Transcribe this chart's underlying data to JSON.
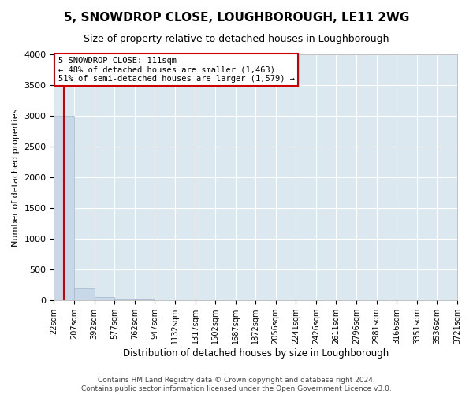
{
  "title": "5, SNOWDROP CLOSE, LOUGHBOROUGH, LE11 2WG",
  "subtitle": "Size of property relative to detached houses in Loughborough",
  "xlabel": "Distribution of detached houses by size in Loughborough",
  "ylabel": "Number of detached properties",
  "bin_edges": [
    22,
    207,
    392,
    577,
    762,
    947,
    1132,
    1317,
    1502,
    1687,
    1872,
    2056,
    2241,
    2426,
    2611,
    2796,
    2981,
    3166,
    3351,
    3536,
    3721
  ],
  "bar_heights": [
    3000,
    200,
    50,
    20,
    10,
    8,
    6,
    5,
    4,
    3,
    3,
    2,
    2,
    2,
    1,
    1,
    1,
    1,
    1,
    1
  ],
  "bar_color": "#c8d8e8",
  "bar_edge_color": "#a0b8cc",
  "vline_x": 111,
  "vline_color": "#cc0000",
  "annotation_text": "5 SNOWDROP CLOSE: 111sqm\n← 48% of detached houses are smaller (1,463)\n51% of semi-detached houses are larger (1,579) →",
  "annotation_box_color": "#cc0000",
  "ylim": [
    0,
    4000
  ],
  "yticks": [
    0,
    500,
    1000,
    1500,
    2000,
    2500,
    3000,
    3500,
    4000
  ],
  "footer_line1": "Contains HM Land Registry data © Crown copyright and database right 2024.",
  "footer_line2": "Contains public sector information licensed under the Open Government Licence v3.0.",
  "plot_bg_color": "#dce8f0",
  "grid_color": "#ffffff"
}
